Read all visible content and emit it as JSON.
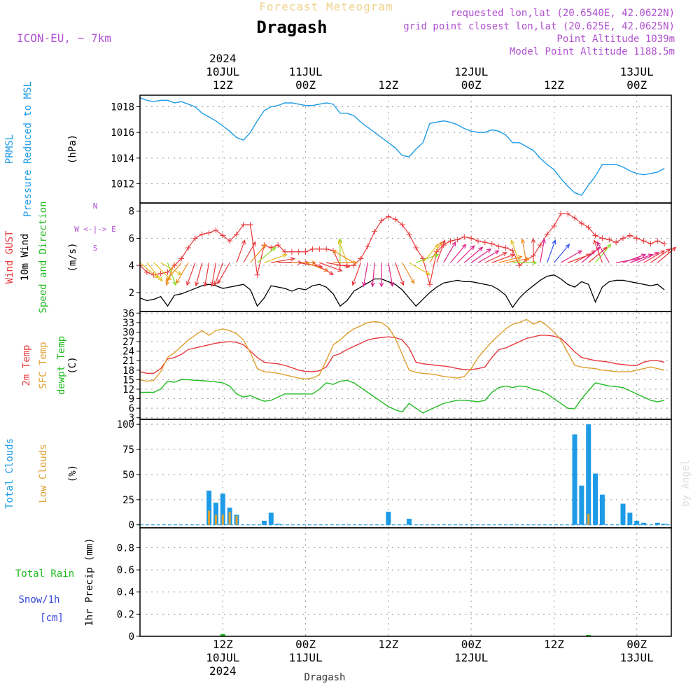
{
  "header": {
    "product": "Forecast Meteogram",
    "station": "Dragash",
    "model": "ICON-EU, ~ 7km",
    "requested": "requested lon,lat (20.6540E, 42.0622N)",
    "gridpoint": "grid point closest lon,lat (20.625E, 42.0625N)",
    "point_alt": "Point Altitude 1039m",
    "model_alt": "Model Point Altitude 1188.5m"
  },
  "footer": {
    "station": "Dragash",
    "credit": "by Angel"
  },
  "colors": {
    "pressure": "#1e9be6",
    "gust": "#e8383b",
    "wind": "#000000",
    "winddir": "#22bb22",
    "t2m": "#e8383b",
    "sfc": "#e0a030",
    "dew": "#22bb22",
    "total_cloud": "#1e9be6",
    "low_cloud": "#e0a030",
    "rain": "#22bb22",
    "snow": "#3344dd",
    "header_accent": "#b050d0"
  },
  "time_axis": {
    "start_hour": 0,
    "end_hour": 77,
    "ticks": [
      {
        "hour": 12,
        "top": [
          "2024",
          "10JUL",
          "12Z"
        ],
        "bottom": [
          "12Z",
          "10JUL",
          "2024"
        ]
      },
      {
        "hour": 24,
        "top": [
          "11JUL",
          "00Z"
        ],
        "bottom": [
          "00Z",
          "11JUL"
        ]
      },
      {
        "hour": 36,
        "top": [
          "12Z"
        ],
        "bottom": [
          "12Z"
        ]
      },
      {
        "hour": 48,
        "top": [
          "12JUL",
          "00Z"
        ],
        "bottom": [
          "00Z",
          "12JUL"
        ]
      },
      {
        "hour": 60,
        "top": [
          "12Z"
        ],
        "bottom": [
          "12Z"
        ]
      },
      {
        "hour": 72,
        "top": [
          "13JUL",
          "00Z"
        ],
        "bottom": [
          "00Z",
          "13JUL"
        ]
      }
    ]
  },
  "chart_data": [
    {
      "type": "line",
      "y_label_lines": [
        "PRMSL",
        "Pressure Reduced to MSL"
      ],
      "unit": "(hPa)",
      "ylim": [
        1010.5,
        1018.9
      ],
      "yticks": [
        1012,
        1014,
        1016,
        1018
      ],
      "x": [
        0,
        1,
        2,
        3,
        4,
        5,
        6,
        7,
        8,
        9,
        10,
        11,
        12,
        13,
        14,
        15,
        16,
        17,
        18,
        19,
        20,
        21,
        22,
        23,
        24,
        25,
        26,
        27,
        28,
        29,
        30,
        31,
        32,
        33,
        34,
        35,
        36,
        37,
        38,
        39,
        40,
        41,
        42,
        43,
        44,
        45,
        46,
        47,
        48,
        49,
        50,
        51,
        52,
        53,
        54,
        55,
        56,
        57,
        58,
        59,
        60,
        61,
        62,
        63,
        64,
        65,
        66,
        67,
        68,
        69,
        70,
        71,
        72,
        73,
        74,
        75,
        76
      ],
      "series": [
        {
          "values": [
            1018.7,
            1018.5,
            1018.4,
            1018.5,
            1018.5,
            1018.3,
            1018.4,
            1018.2,
            1018.0,
            1017.5,
            1017.2,
            1016.9,
            1016.5,
            1016.1,
            1015.6,
            1015.4,
            1016.0,
            1016.9,
            1017.7,
            1018.0,
            1018.1,
            1018.3,
            1018.3,
            1018.2,
            1018.1,
            1018.1,
            1018.2,
            1018.3,
            1018.2,
            1017.5,
            1017.5,
            1017.3,
            1016.8,
            1016.4,
            1016.0,
            1015.6,
            1015.2,
            1014.8,
            1014.2,
            1014.1,
            1014.7,
            1015.2,
            1016.7,
            1016.8,
            1016.9,
            1016.8,
            1016.6,
            1016.3,
            1016.1,
            1016.0,
            1016.0,
            1016.2,
            1016.1,
            1015.8,
            1015.2,
            1015.2,
            1014.9,
            1014.6,
            1014.0,
            1013.5,
            1013.1,
            1012.4,
            1011.8,
            1011.3,
            1011.1,
            1011.9,
            1012.6,
            1013.5,
            1013.5,
            1013.5,
            1013.3,
            1013.0,
            1012.8,
            1012.7,
            1012.8,
            1012.9,
            1013.2
          ]
        }
      ]
    },
    {
      "type": "line",
      "y_label_lines": [
        "Wind GUST",
        "10m Wind",
        "Speed and Direction"
      ],
      "unit": "(m/s)",
      "compass": [
        "N",
        "W <-|-> E",
        "S"
      ],
      "ylim": [
        0.6,
        8.6
      ],
      "yticks": [
        2,
        4,
        6,
        8
      ],
      "x": [
        0,
        1,
        2,
        3,
        4,
        5,
        6,
        7,
        8,
        9,
        10,
        11,
        12,
        13,
        14,
        15,
        16,
        17,
        18,
        19,
        20,
        21,
        22,
        23,
        24,
        25,
        26,
        27,
        28,
        29,
        30,
        31,
        32,
        33,
        34,
        35,
        36,
        37,
        38,
        39,
        40,
        41,
        42,
        43,
        44,
        45,
        46,
        47,
        48,
        49,
        50,
        51,
        52,
        53,
        54,
        55,
        56,
        57,
        58,
        59,
        60,
        61,
        62,
        63,
        64,
        65,
        66,
        67,
        68,
        69,
        70,
        71,
        72,
        73,
        74,
        75,
        76
      ],
      "series": [
        {
          "name": "gust",
          "values": [
            4.0,
            3.5,
            3.3,
            3.4,
            3.5,
            4.0,
            4.5,
            5.3,
            6.0,
            6.3,
            6.4,
            6.6,
            6.2,
            5.8,
            6.3,
            7.0,
            7.0,
            3.3,
            5.5,
            5.3,
            5.5,
            5.0,
            5.0,
            5.0,
            5.0,
            5.2,
            5.2,
            5.2,
            5.1,
            4.0,
            4.0,
            4.0,
            4.5,
            5.4,
            6.5,
            7.3,
            7.6,
            7.4,
            7.0,
            6.3,
            5.3,
            4.5,
            2.6,
            5.0,
            5.5,
            5.8,
            5.9,
            6.1,
            6.0,
            5.8,
            5.7,
            5.6,
            5.4,
            5.3,
            5.1,
            4.0,
            4.4,
            4.7,
            5.5,
            6.3,
            6.9,
            7.8,
            7.8,
            7.5,
            7.1,
            6.8,
            6.2,
            6.0,
            5.9,
            5.7,
            6.0,
            6.2,
            6.0,
            5.8,
            5.6,
            5.8,
            5.6
          ]
        },
        {
          "name": "wind10m",
          "values": [
            1.6,
            1.4,
            1.5,
            1.7,
            1.0,
            1.8,
            1.9,
            2.1,
            2.3,
            2.5,
            2.6,
            2.5,
            2.3,
            2.4,
            2.5,
            2.6,
            2.2,
            1.0,
            1.6,
            2.5,
            2.4,
            2.3,
            2.1,
            2.3,
            2.2,
            2.5,
            2.6,
            2.4,
            1.9,
            1.0,
            1.4,
            2.1,
            2.4,
            2.7,
            3.0,
            3.0,
            2.8,
            2.6,
            2.2,
            1.6,
            1.0,
            1.5,
            2.0,
            2.4,
            2.7,
            2.8,
            2.9,
            2.8,
            2.8,
            2.7,
            2.6,
            2.5,
            2.2,
            1.8,
            0.9,
            1.6,
            2.1,
            2.5,
            2.9,
            3.2,
            3.3,
            3.0,
            2.6,
            2.4,
            2.8,
            2.6,
            1.3,
            2.4,
            2.8,
            2.9,
            2.9,
            2.8,
            2.7,
            2.6,
            2.5,
            2.6,
            2.2
          ]
        }
      ],
      "wind_dir_deg": [
        310,
        320,
        315,
        300,
        340,
        20,
        40,
        30,
        20,
        15,
        10,
        10,
        20,
        30,
        200,
        210,
        220,
        230,
        250,
        260,
        270,
        270,
        270,
        280,
        290,
        300,
        290,
        280,
        270,
        180,
        160,
        120,
        20,
        10,
        5,
        0,
        350,
        340,
        330,
        300,
        250,
        220,
        210,
        200,
        210,
        220,
        225,
        230,
        235,
        240,
        245,
        250,
        255,
        260,
        270,
        160,
        170,
        180,
        190,
        200,
        220,
        240,
        250,
        240,
        230,
        230,
        220,
        160,
        150,
        260,
        250,
        250,
        245,
        240,
        235,
        230,
        230
      ]
    },
    {
      "type": "line",
      "y_label_lines": [
        "2m Temp",
        "SFC Temp",
        "dewpt Temp"
      ],
      "unit": "(C)",
      "ylim": [
        2.5,
        36.5
      ],
      "yticks": [
        3,
        6,
        9,
        12,
        15,
        18,
        21,
        24,
        27,
        30,
        33,
        36
      ],
      "x": [
        0,
        1,
        2,
        3,
        4,
        5,
        6,
        7,
        8,
        9,
        10,
        11,
        12,
        13,
        14,
        15,
        16,
        17,
        18,
        19,
        20,
        21,
        22,
        23,
        24,
        25,
        26,
        27,
        28,
        29,
        30,
        31,
        32,
        33,
        34,
        35,
        36,
        37,
        38,
        39,
        40,
        41,
        42,
        43,
        44,
        45,
        46,
        47,
        48,
        49,
        50,
        51,
        52,
        53,
        54,
        55,
        56,
        57,
        58,
        59,
        60,
        61,
        62,
        63,
        64,
        65,
        66,
        67,
        68,
        69,
        70,
        71,
        72,
        73,
        74,
        75,
        76
      ],
      "series": [
        {
          "name": "t2m",
          "values": [
            17.5,
            17.0,
            17.0,
            18.5,
            21.5,
            22.0,
            23.0,
            24.5,
            25.0,
            25.5,
            26.0,
            26.5,
            26.8,
            27.0,
            26.8,
            26.0,
            24.0,
            22.0,
            20.5,
            20.2,
            20.0,
            19.5,
            18.8,
            18.0,
            17.6,
            17.5,
            17.8,
            19.0,
            22.5,
            23.2,
            24.5,
            25.5,
            26.5,
            27.5,
            28.0,
            28.3,
            28.5,
            28.3,
            27.5,
            25.0,
            20.5,
            20.0,
            19.8,
            19.5,
            19.3,
            19.0,
            18.5,
            18.2,
            18.2,
            18.5,
            19.0,
            22.0,
            24.5,
            25.0,
            26.0,
            27.0,
            28.0,
            28.5,
            29.0,
            29.0,
            28.7,
            28.0,
            26.0,
            23.8,
            22.0,
            21.5,
            21.0,
            20.8,
            20.5,
            20.0,
            19.8,
            19.5,
            19.5,
            20.5,
            21.0,
            21.0,
            20.5
          ]
        },
        {
          "name": "sfc",
          "values": [
            15.0,
            14.5,
            14.8,
            17.5,
            22.0,
            23.5,
            25.5,
            27.5,
            29.0,
            30.5,
            29.0,
            30.5,
            31.0,
            30.5,
            29.5,
            27.5,
            23.5,
            18.5,
            17.5,
            17.3,
            17.0,
            16.5,
            16.0,
            15.5,
            15.2,
            15.5,
            16.5,
            21.0,
            26.0,
            27.5,
            29.5,
            31.0,
            32.0,
            33.0,
            33.3,
            33.0,
            31.5,
            28.0,
            23.0,
            18.0,
            17.3,
            17.0,
            16.8,
            16.5,
            16.0,
            15.8,
            15.5,
            16.0,
            18.5,
            22.0,
            24.5,
            27.0,
            29.0,
            31.0,
            32.5,
            33.0,
            34.0,
            32.5,
            33.5,
            32.0,
            30.0,
            27.5,
            23.5,
            19.5,
            19.0,
            18.7,
            18.5,
            18.0,
            17.8,
            17.5,
            17.5,
            17.5,
            18.0,
            18.5,
            19.0,
            18.5,
            18.0
          ]
        },
        {
          "name": "dew",
          "values": [
            11.0,
            11.0,
            11.0,
            12.0,
            14.5,
            14.2,
            15.0,
            15.0,
            14.8,
            14.7,
            14.5,
            14.3,
            14.0,
            13.0,
            10.5,
            9.5,
            10.0,
            9.0,
            8.2,
            8.5,
            9.5,
            10.5,
            10.5,
            10.5,
            10.5,
            10.5,
            12.0,
            14.0,
            13.5,
            14.5,
            14.8,
            14.0,
            12.5,
            11.0,
            9.5,
            8.0,
            6.5,
            5.5,
            4.8,
            7.5,
            6.0,
            4.5,
            5.5,
            6.5,
            7.5,
            8.0,
            8.5,
            8.5,
            8.3,
            8.0,
            8.5,
            11.0,
            12.5,
            13.0,
            12.5,
            13.0,
            12.8,
            12.0,
            11.5,
            10.5,
            9.0,
            7.5,
            6.0,
            5.8,
            9.0,
            11.5,
            14.0,
            13.5,
            13.0,
            12.8,
            12.5,
            11.5,
            10.5,
            9.5,
            8.5,
            8.0,
            8.5
          ]
        }
      ]
    },
    {
      "type": "bar",
      "y_label_lines": [
        "Total Clouds",
        "Low Clouds"
      ],
      "unit": "(%)",
      "ylim": [
        -3,
        105
      ],
      "yticks": [
        0,
        25,
        50,
        75,
        100
      ],
      "x": [
        0,
        1,
        2,
        3,
        4,
        5,
        6,
        7,
        8,
        9,
        10,
        11,
        12,
        13,
        14,
        15,
        16,
        17,
        18,
        19,
        20,
        21,
        22,
        23,
        24,
        25,
        26,
        27,
        28,
        29,
        30,
        31,
        32,
        33,
        34,
        35,
        36,
        37,
        38,
        39,
        40,
        41,
        42,
        43,
        44,
        45,
        46,
        47,
        48,
        49,
        50,
        51,
        52,
        53,
        54,
        55,
        56,
        57,
        58,
        59,
        60,
        61,
        62,
        63,
        64,
        65,
        66,
        67,
        68,
        69,
        70,
        71,
        72,
        73,
        74,
        75,
        76
      ],
      "series": [
        {
          "name": "total",
          "values": [
            0,
            0,
            0,
            0,
            0,
            0,
            0,
            0,
            0,
            0,
            34,
            22,
            31,
            17,
            10,
            0,
            0,
            0,
            4,
            12,
            1,
            0,
            0,
            0,
            0,
            0,
            0,
            0,
            0,
            0,
            0,
            0,
            0,
            0,
            0,
            0,
            13,
            0,
            0,
            6,
            0,
            0,
            0,
            0,
            0,
            0,
            0,
            0,
            0,
            0,
            0,
            0,
            0,
            0,
            0,
            0,
            0,
            0,
            0,
            0,
            0,
            0,
            0,
            90,
            39,
            100,
            51,
            30,
            0,
            0,
            21,
            12,
            4,
            2,
            0,
            2,
            1
          ]
        },
        {
          "name": "low",
          "values": [
            0,
            0,
            0,
            0,
            0,
            0,
            0,
            0,
            0,
            0,
            14,
            10,
            10,
            13,
            9,
            0,
            0,
            0,
            0,
            0,
            0,
            0,
            0,
            0,
            0,
            0,
            0,
            0,
            0,
            0,
            0,
            0,
            0,
            0,
            0,
            0,
            0,
            0,
            0,
            0,
            0,
            0,
            0,
            0,
            0,
            0,
            0,
            0,
            0,
            0,
            0,
            0,
            0,
            0,
            0,
            0,
            0,
            0,
            0,
            0,
            0,
            0,
            0,
            0,
            0,
            11,
            0,
            0,
            0,
            0,
            0,
            0,
            0,
            0,
            0,
            0,
            0
          ]
        }
      ]
    },
    {
      "type": "bar",
      "y_label_lines": [
        "Total  Rain",
        "Snow/1h",
        "[cm]"
      ],
      "unit": "1hr Precip (mm)",
      "ylim": [
        0,
        0.98
      ],
      "yticks": [
        "0",
        "0.2",
        "0.4",
        "0.6",
        "0.8"
      ],
      "x": [
        12,
        65
      ],
      "series": [
        {
          "name": "rain",
          "values": [
            0.02,
            0.01
          ]
        }
      ]
    }
  ]
}
